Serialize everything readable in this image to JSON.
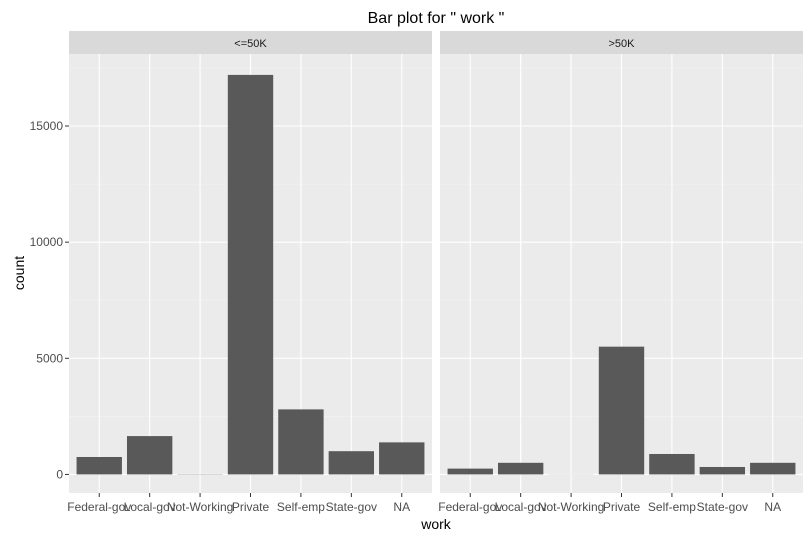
{
  "chart_data": {
    "type": "bar",
    "title": "Bar plot for \" work \"",
    "xlabel": "work",
    "ylabel": "count",
    "categories": [
      "Federal-gov",
      "Local-gov",
      "Not-Working",
      "Private",
      "Self-emp",
      "State-gov",
      "NA"
    ],
    "yticks": [
      0,
      5000,
      10000,
      15000
    ],
    "ylim": [
      -800,
      18100
    ],
    "grid": true,
    "colors": {
      "bar": "#595959",
      "panel": "#ebebeb",
      "strip": "#d9d9d9",
      "grid_major": "#ffffff",
      "grid_minor": "#f2f2f2"
    },
    "facets": [
      {
        "label": "<=50K",
        "values": [
          750,
          1650,
          10,
          17200,
          2800,
          1000,
          1380
        ]
      },
      {
        "label": ">50K",
        "values": [
          250,
          500,
          5,
          5500,
          880,
          320,
          500
        ]
      }
    ]
  }
}
